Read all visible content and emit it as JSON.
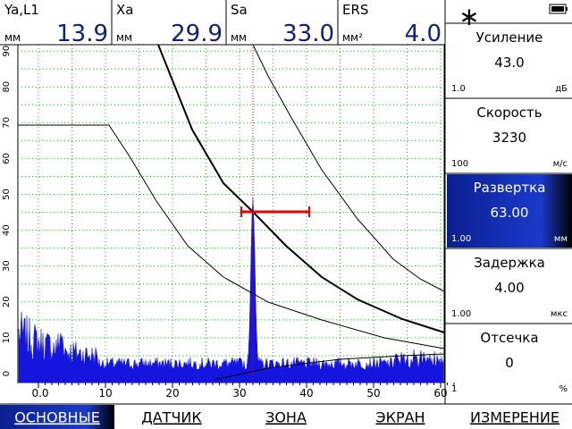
{
  "readouts": [
    {
      "label": "Ya,L1",
      "unit": "мм",
      "value": "13.9"
    },
    {
      "label": "Xa",
      "unit": "мм",
      "value": "29.9"
    },
    {
      "label": "Sa",
      "unit": "мм",
      "value": "33.0"
    },
    {
      "label": "ERS",
      "unit": "мм²",
      "value": "4.0"
    }
  ],
  "status": {
    "icon": "∗"
  },
  "params": [
    {
      "name": "Усиление",
      "value": "43.0",
      "step": "1.0",
      "unit": "дБ"
    },
    {
      "name": "Скорость",
      "value": "3230",
      "step": "100",
      "unit": "м/с"
    },
    {
      "name": "Развертка",
      "value": "63.00",
      "step": "1.00",
      "unit": "мм"
    },
    {
      "name": "Задержка",
      "value": "4.00",
      "step": "1.00",
      "unit": "мкс"
    },
    {
      "name": "Отсечка",
      "value": "0",
      "step": "1",
      "unit": "%"
    }
  ],
  "xticks": [
    "0.0",
    "10",
    "20",
    "30",
    "40",
    "50",
    "60"
  ],
  "yticks": [
    "0",
    "10",
    "20",
    "30",
    "40",
    "50",
    "60",
    "70",
    "80",
    "90"
  ],
  "menu": [
    "ОСНОВНЫЕ",
    "ДАТЧИК",
    "ЗОНА",
    "ЭКРАН",
    "ИЗМЕРЕНИЕ"
  ]
}
